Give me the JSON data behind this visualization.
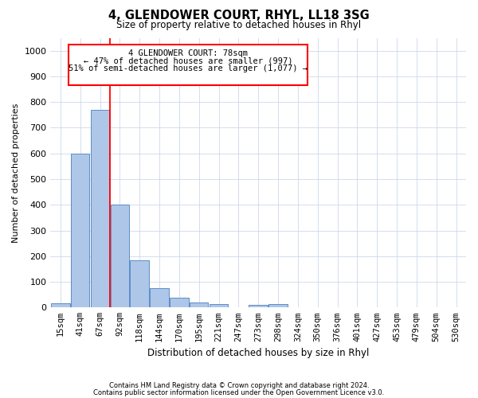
{
  "title": "4, GLENDOWER COURT, RHYL, LL18 3SG",
  "subtitle": "Size of property relative to detached houses in Rhyl",
  "xlabel": "Distribution of detached houses by size in Rhyl",
  "ylabel": "Number of detached properties",
  "footnote1": "Contains HM Land Registry data © Crown copyright and database right 2024.",
  "footnote2": "Contains public sector information licensed under the Open Government Licence v3.0.",
  "categories": [
    "15sqm",
    "41sqm",
    "67sqm",
    "92sqm",
    "118sqm",
    "144sqm",
    "170sqm",
    "195sqm",
    "221sqm",
    "247sqm",
    "273sqm",
    "298sqm",
    "324sqm",
    "350sqm",
    "376sqm",
    "401sqm",
    "427sqm",
    "453sqm",
    "479sqm",
    "504sqm",
    "530sqm"
  ],
  "values": [
    15,
    600,
    770,
    400,
    185,
    75,
    38,
    18,
    14,
    0,
    10,
    14,
    0,
    0,
    0,
    0,
    0,
    0,
    0,
    0,
    0
  ],
  "bar_color": "#aec6e8",
  "bar_edge_color": "#5b8dc8",
  "ylim": [
    0,
    1050
  ],
  "yticks": [
    0,
    100,
    200,
    300,
    400,
    500,
    600,
    700,
    800,
    900,
    1000
  ],
  "red_line_x": 2.5,
  "annotation_box_text1": "4 GLENDOWER COURT: 78sqm",
  "annotation_box_text2": "← 47% of detached houses are smaller (997)",
  "annotation_box_text3": "51% of semi-detached houses are larger (1,077) →"
}
